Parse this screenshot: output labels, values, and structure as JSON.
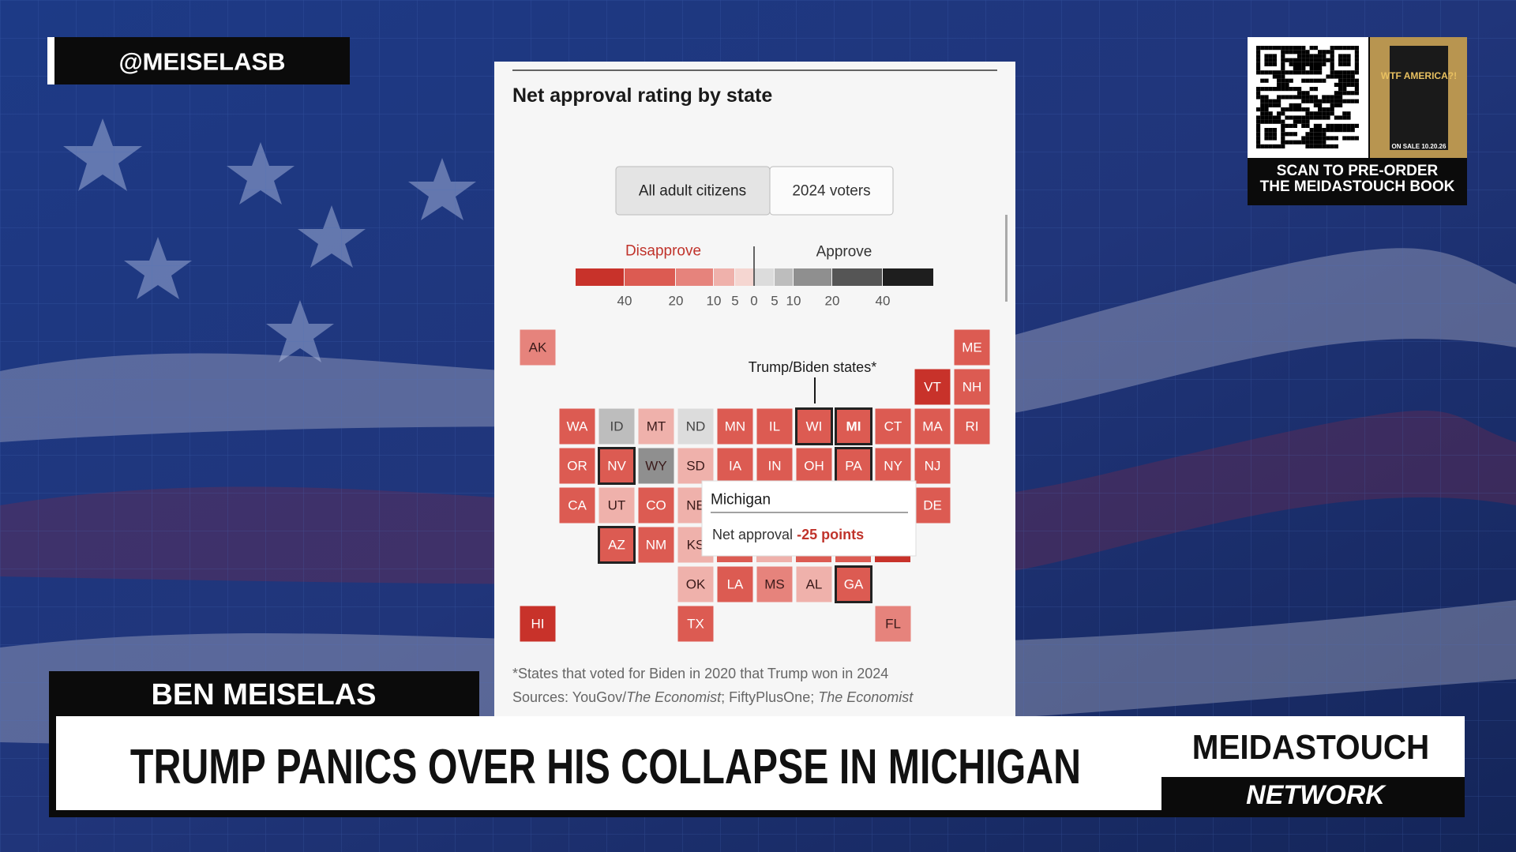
{
  "overlay": {
    "handle": "@MEISELASB",
    "promo": {
      "book_title": "WTF AMERICA?!",
      "on_sale": "ON SALE 10.20.26",
      "lines": [
        "SCAN TO PRE-ORDER",
        "THE MEIDASTOUCH BOOK"
      ]
    },
    "name": "BEN MEISELAS",
    "headline": "TRUMP PANICS OVER HIS COLLAPSE IN MICHIGAN",
    "brand": "MEIDASTOUCH",
    "brand_sub": "NETWORK"
  },
  "panel": {
    "title": "Net approval rating by state",
    "toggle": [
      "All adult citizens",
      "2024 voters"
    ],
    "selected_toggle": 0,
    "legend": {
      "disapprove": "Disapprove",
      "approve": "Approve",
      "ticks": [
        "40",
        "20",
        "10",
        "5",
        "0",
        "5",
        "10",
        "20",
        "40"
      ],
      "colors": [
        "#c8322a",
        "#dc5b52",
        "#e6837c",
        "#efb1ab",
        "#f5d6d1",
        "#dcdcdc",
        "#bdbdbd",
        "#8f8f8f",
        "#555555",
        "#1e1e1e"
      ]
    },
    "annotation": "Trump/Biden states*",
    "states": [
      {
        "label": "AK",
        "color": "#e6837c"
      },
      {
        "label": "ME",
        "color": "#dc5b52"
      },
      {
        "label": "VT",
        "color": "#c8322a"
      },
      {
        "label": "NH",
        "color": "#dc5b52"
      },
      {
        "label": "WA",
        "color": "#dc5b52"
      },
      {
        "label": "ID",
        "color": "#bdbdbd"
      },
      {
        "label": "MT",
        "color": "#efb1ab"
      },
      {
        "label": "ND",
        "color": "#dcdcdc"
      },
      {
        "label": "MN",
        "color": "#dc5b52"
      },
      {
        "label": "IL",
        "color": "#dc5b52"
      },
      {
        "label": "WI",
        "color": "#dc5b52",
        "outlined": true
      },
      {
        "label": "MI",
        "color": "#dc5b52",
        "outlined": true
      },
      {
        "label": "CT",
        "color": "#dc5b52"
      },
      {
        "label": "MA",
        "color": "#dc5b52"
      },
      {
        "label": "RI",
        "color": "#dc5b52"
      },
      {
        "label": "OR",
        "color": "#dc5b52"
      },
      {
        "label": "NV",
        "color": "#dc5b52",
        "outlined": true
      },
      {
        "label": "WY",
        "color": "#8f8f8f"
      },
      {
        "label": "SD",
        "color": "#efb1ab"
      },
      {
        "label": "IA",
        "color": "#dc5b52"
      },
      {
        "label": "IN",
        "color": "#dc5b52"
      },
      {
        "label": "OH",
        "color": "#dc5b52"
      },
      {
        "label": "PA",
        "color": "#dc5b52",
        "outlined": true
      },
      {
        "label": "NY",
        "color": "#dc5b52"
      },
      {
        "label": "NJ",
        "color": "#dc5b52"
      },
      {
        "label": "CA",
        "color": "#dc5b52"
      },
      {
        "label": "UT",
        "color": "#efb1ab"
      },
      {
        "label": "CO",
        "color": "#dc5b52"
      },
      {
        "label": "NE",
        "color": "#efb1ab"
      },
      {
        "label": "DE",
        "color": "#dc5b52"
      },
      {
        "label": "AZ",
        "color": "#dc5b52",
        "outlined": true
      },
      {
        "label": "NM",
        "color": "#dc5b52"
      },
      {
        "label": "KS",
        "color": "#efb1ab"
      },
      {
        "label": "OK",
        "color": "#efb1ab"
      },
      {
        "label": "LA",
        "color": "#dc5b52"
      },
      {
        "label": "MS",
        "color": "#e6837c"
      },
      {
        "label": "AL",
        "color": "#efb1ab"
      },
      {
        "label": "GA",
        "color": "#dc5b52",
        "outlined": true
      },
      {
        "label": "HI",
        "color": "#c8322a"
      },
      {
        "label": "TX",
        "color": "#dc5b52"
      },
      {
        "label": "FL",
        "color": "#e6837c"
      }
    ],
    "tooltip": {
      "title": "Michigan",
      "label": "Net approval",
      "value": "-25 points"
    },
    "footnote": "*States that voted for Biden in 2020 that Trump won in 2024",
    "sources": [
      "Sources: YouGov/",
      "The Economist",
      "; FiftyPlusOne; ",
      "The Economist"
    ]
  }
}
